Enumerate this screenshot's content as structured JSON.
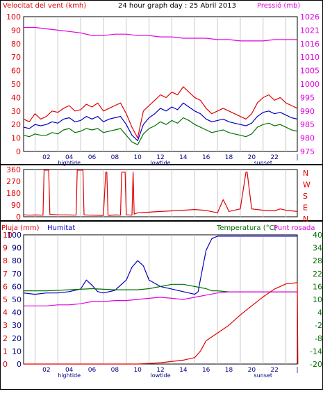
{
  "header": {
    "left_title": "Velocitat del vent (kmh)",
    "center_title": "24 hour graph day : 25 Abril 2013",
    "right_title": "Pressió (mb)"
  },
  "colors": {
    "red": "#e00000",
    "blue": "#0000c0",
    "green": "#007000",
    "magenta": "#e000e0",
    "grid": "#c8c8c8",
    "axis_text_dark": "#000080"
  },
  "chart_data": [
    {
      "id": "wind-pressure",
      "type": "line",
      "title": "24 hour graph day : 25 Abril 2013",
      "ylabel_left": "Velocitat del vent (kmh)",
      "ylabel_right": "Pressió (mb)",
      "xlim": [
        0,
        24
      ],
      "ylim_left": [
        0,
        100
      ],
      "ylim_right": [
        975,
        1025
      ],
      "yticks_left": [
        "0",
        "10",
        "20",
        "30",
        "40",
        "50",
        "60",
        "70",
        "80",
        "90",
        "100"
      ],
      "yticks_right": [
        "975",
        "980",
        "985",
        "990",
        "995",
        "1000",
        "1005",
        "1010",
        "1016",
        "1021",
        "1026"
      ],
      "grid": "vertical",
      "series": [
        {
          "id": "gust",
          "color": "#e00000",
          "axis": "left",
          "x": [
            0,
            0.5,
            1,
            1.5,
            2,
            2.5,
            3,
            3.5,
            4,
            4.5,
            5,
            5.5,
            6,
            6.5,
            7,
            7.5,
            8,
            8.5,
            9,
            9.5,
            10,
            10.5,
            11,
            11.5,
            12,
            12.5,
            13,
            13.5,
            14,
            14.5,
            15,
            15.5,
            16,
            16.5,
            17,
            17.5,
            18,
            18.5,
            19,
            19.5,
            20,
            20.5,
            21,
            21.5,
            22,
            22.5,
            23,
            23.5,
            24
          ],
          "y": [
            24,
            22,
            28,
            24,
            26,
            30,
            29,
            32,
            34,
            30,
            31,
            35,
            33,
            36,
            30,
            32,
            34,
            36,
            28,
            18,
            10,
            30,
            34,
            38,
            42,
            40,
            44,
            42,
            48,
            44,
            40,
            38,
            32,
            28,
            30,
            32,
            30,
            28,
            26,
            24,
            28,
            36,
            40,
            42,
            38,
            40,
            36,
            34,
            32
          ]
        },
        {
          "id": "wind_avg",
          "color": "#0000c0",
          "axis": "left",
          "x": [
            0,
            0.5,
            1,
            1.5,
            2,
            2.5,
            3,
            3.5,
            4,
            4.5,
            5,
            5.5,
            6,
            6.5,
            7,
            7.5,
            8,
            8.5,
            9,
            9.5,
            10,
            10.5,
            11,
            11.5,
            12,
            12.5,
            13,
            13.5,
            14,
            14.5,
            15,
            15.5,
            16,
            16.5,
            17,
            17.5,
            18,
            18.5,
            19,
            19.5,
            20,
            20.5,
            21,
            21.5,
            22,
            22.5,
            23,
            23.5,
            24
          ],
          "y": [
            18,
            17,
            20,
            19,
            20,
            22,
            21,
            24,
            25,
            22,
            23,
            26,
            24,
            26,
            22,
            24,
            25,
            26,
            20,
            12,
            8,
            20,
            25,
            28,
            32,
            30,
            33,
            31,
            36,
            33,
            30,
            28,
            24,
            22,
            23,
            24,
            22,
            21,
            20,
            19,
            21,
            26,
            29,
            30,
            28,
            29,
            27,
            25,
            24
          ]
        },
        {
          "id": "wind_min",
          "color": "#007000",
          "axis": "left",
          "x": [
            0,
            0.5,
            1,
            1.5,
            2,
            2.5,
            3,
            3.5,
            4,
            4.5,
            5,
            5.5,
            6,
            6.5,
            7,
            7.5,
            8,
            8.5,
            9,
            9.5,
            10,
            10.5,
            11,
            11.5,
            12,
            12.5,
            13,
            13.5,
            14,
            14.5,
            15,
            15.5,
            16,
            16.5,
            17,
            17.5,
            18,
            18.5,
            19,
            19.5,
            20,
            20.5,
            21,
            21.5,
            22,
            22.5,
            23,
            23.5,
            24
          ],
          "y": [
            12,
            11,
            13,
            12,
            12,
            14,
            13,
            16,
            17,
            14,
            15,
            17,
            16,
            17,
            14,
            15,
            16,
            17,
            12,
            7,
            5,
            13,
            17,
            19,
            22,
            20,
            23,
            21,
            25,
            23,
            20,
            18,
            16,
            14,
            15,
            16,
            14,
            13,
            12,
            11,
            13,
            18,
            20,
            21,
            19,
            20,
            18,
            16,
            15
          ]
        },
        {
          "id": "pressure",
          "color": "#e000e0",
          "axis": "right",
          "x": [
            0,
            1,
            2,
            3,
            4,
            5,
            6,
            7,
            8,
            9,
            10,
            11,
            12,
            13,
            14,
            15,
            16,
            17,
            18,
            19,
            20,
            21,
            22,
            23,
            24
          ],
          "y": [
            1021,
            1021,
            1020.5,
            1020,
            1019.5,
            1019,
            1018,
            1018,
            1018.5,
            1018.5,
            1018,
            1018,
            1017.5,
            1017.5,
            1017,
            1017,
            1017,
            1016.5,
            1016.5,
            1016,
            1016,
            1016,
            1016.5,
            1016.5,
            1016.5
          ]
        }
      ]
    },
    {
      "id": "wind-direction",
      "type": "line",
      "xlim": [
        0,
        24
      ],
      "ylim": [
        0,
        360
      ],
      "yticks": [
        "0",
        "90",
        "180",
        "270",
        "360"
      ],
      "direction_labels": [
        "N",
        "W",
        "S",
        "E",
        "N"
      ],
      "series": [
        {
          "id": "direction",
          "color": "#e00000",
          "x": [
            0,
            0.5,
            1,
            1.7,
            1.8,
            2.2,
            2.3,
            3,
            4,
            4.6,
            4.7,
            5.2,
            5.3,
            6,
            7,
            7.2,
            7.3,
            7.4,
            7.5,
            8,
            8.5,
            8.6,
            8.9,
            9,
            9.5,
            9.6,
            9.7,
            10,
            11,
            12,
            13,
            14,
            15,
            16,
            17,
            17.3,
            17.5,
            17.8,
            18,
            18.5,
            19,
            19.5,
            19.6,
            20,
            20.5,
            21,
            22,
            22.5,
            23,
            23.5,
            24
          ],
          "y": [
            15,
            12,
            14,
            12,
            355,
            355,
            18,
            15,
            14,
            12,
            355,
            355,
            14,
            12,
            10,
            340,
            340,
            12,
            10,
            14,
            12,
            340,
            340,
            15,
            12,
            340,
            20,
            30,
            35,
            40,
            45,
            50,
            55,
            48,
            30,
            90,
            130,
            80,
            40,
            50,
            60,
            340,
            340,
            60,
            55,
            50,
            45,
            60,
            50,
            45,
            40
          ]
        }
      ]
    },
    {
      "id": "rain-humidity-temperature",
      "type": "line",
      "ylabel_left": "Pluja (mm)",
      "ylabel_center": "Humitat",
      "ylabel_right": "Temperatura (°C)",
      "ylabel_right2": "Punt rosada",
      "xlim": [
        0,
        24
      ],
      "rain_ylim": [
        0,
        10
      ],
      "rain_yticks": [
        "0",
        "1",
        "2",
        "3",
        "4",
        "5",
        "6",
        "7",
        "8",
        "9",
        "10"
      ],
      "humidity_ylim": [
        0,
        100
      ],
      "humidity_yticks": [
        "0",
        "10",
        "20",
        "30",
        "40",
        "50",
        "60",
        "70",
        "80",
        "90",
        "100"
      ],
      "temp_ylim": [
        -20,
        40
      ],
      "temp_yticks": [
        "-20",
        "-14",
        "-8",
        "-2",
        "4",
        "10",
        "16",
        "22",
        "28",
        "34",
        "40"
      ],
      "series": [
        {
          "id": "humidity",
          "color": "#0000c0",
          "axis": "humidity",
          "x": [
            0,
            1,
            2,
            3,
            4,
            5,
            5.5,
            6,
            6.5,
            7,
            8,
            9,
            9.5,
            10,
            10.5,
            11,
            12,
            13,
            14,
            15,
            15.3,
            15.6,
            16,
            16.5,
            17,
            18,
            19,
            20,
            21,
            22,
            23,
            24
          ],
          "y": [
            55,
            54,
            55,
            55,
            56,
            58,
            65,
            61,
            56,
            55,
            57,
            65,
            75,
            80,
            76,
            65,
            60,
            58,
            56,
            54,
            56,
            70,
            88,
            97,
            99,
            99,
            99,
            99,
            99,
            99,
            99,
            99
          ]
        },
        {
          "id": "temperature",
          "color": "#007000",
          "axis": "temp",
          "x": [
            0,
            2,
            4,
            6,
            8,
            10,
            11,
            12,
            13,
            14,
            15,
            16,
            16.5,
            17,
            18,
            20,
            22,
            24
          ],
          "y": [
            14,
            14,
            14.5,
            15,
            14.5,
            14.5,
            15,
            16,
            17,
            17,
            16,
            15,
            14,
            14,
            13.5,
            13.5,
            13.5,
            13.5
          ]
        },
        {
          "id": "dewpoint",
          "color": "#e000e0",
          "axis": "temp",
          "x": [
            0,
            1,
            2,
            3,
            4,
            5,
            6,
            7,
            8,
            9,
            10,
            11,
            12,
            13,
            14,
            15,
            16,
            17,
            18,
            20,
            22,
            24
          ],
          "y": [
            7,
            7,
            7,
            7.5,
            7.5,
            8,
            9,
            9,
            9.5,
            9.5,
            10,
            10.5,
            11,
            10.5,
            10,
            11,
            12,
            13,
            13.5,
            13.5,
            13.5,
            13.5
          ]
        },
        {
          "id": "rain",
          "color": "#e00000",
          "axis": "rain",
          "x": [
            0,
            4,
            8,
            10,
            12,
            14,
            15,
            15.5,
            16,
            17,
            18,
            19,
            20,
            21,
            22,
            23,
            24,
            24.05
          ],
          "y": [
            0,
            0,
            0,
            0,
            0.1,
            0.3,
            0.5,
            1,
            1.8,
            2.4,
            3,
            3.8,
            4.5,
            5.2,
            5.8,
            6.2,
            6.3,
            0
          ]
        }
      ]
    }
  ],
  "x_axis": {
    "ticks": [
      "02",
      "04",
      "06",
      "08",
      "10",
      "12",
      "14",
      "16",
      "18",
      "20",
      "22"
    ],
    "last_tick": "|",
    "events_top": [
      {
        "label": "hightide",
        "hour": 4
      },
      {
        "label": "lowtide",
        "hour": 12
      },
      {
        "label": "sunset",
        "hour": 21
      }
    ],
    "events_bottom": [
      {
        "label": "hightide",
        "hour": 4
      },
      {
        "label": "lowtide",
        "hour": 12
      },
      {
        "label": "sunset",
        "hour": 21
      }
    ]
  }
}
